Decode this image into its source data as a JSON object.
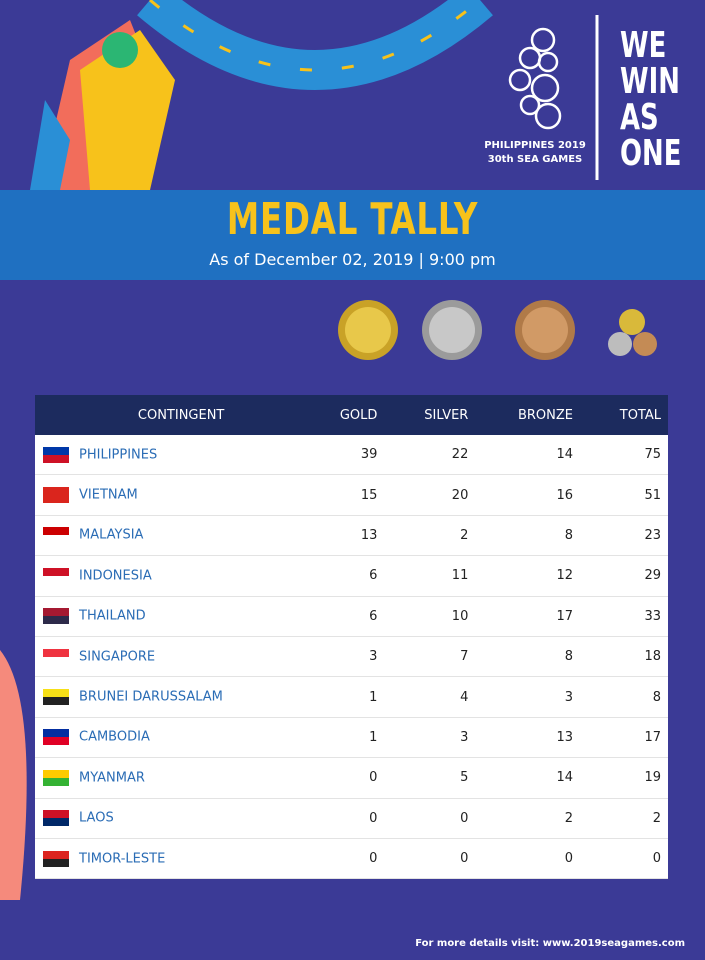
{
  "logo": {
    "line1": "PHILIPPINES 2019",
    "line2": "30th SEA GAMES"
  },
  "slogan": [
    "WE",
    "WIN",
    "AS",
    "ONE"
  ],
  "header": {
    "title": "MEDAL TALLY",
    "subtitle": "As of December 02, 2019 | 9:00 pm"
  },
  "table": {
    "columns": [
      "CONTINGENT",
      "GOLD",
      "SILVER",
      "BRONZE",
      "TOTAL"
    ],
    "rows": [
      [
        "PHILIPPINES",
        39,
        22,
        14,
        75
      ],
      [
        "VIETNAM",
        15,
        20,
        16,
        51
      ],
      [
        "MALAYSIA",
        13,
        2,
        8,
        23
      ],
      [
        "INDONESIA",
        6,
        11,
        12,
        29
      ],
      [
        "THAILAND",
        6,
        10,
        17,
        33
      ],
      [
        "SINGAPORE",
        3,
        7,
        8,
        18
      ],
      [
        "BRUNEI DARUSSALAM",
        1,
        4,
        3,
        8
      ],
      [
        "CAMBODIA",
        1,
        3,
        13,
        17
      ],
      [
        "MYANMAR",
        0,
        5,
        14,
        19
      ],
      [
        "LAOS",
        0,
        0,
        2,
        2
      ],
      [
        "TIMOR-LESTE",
        0,
        0,
        0,
        0
      ]
    ]
  },
  "footer": "For more details visit: www.2019seagames.com"
}
